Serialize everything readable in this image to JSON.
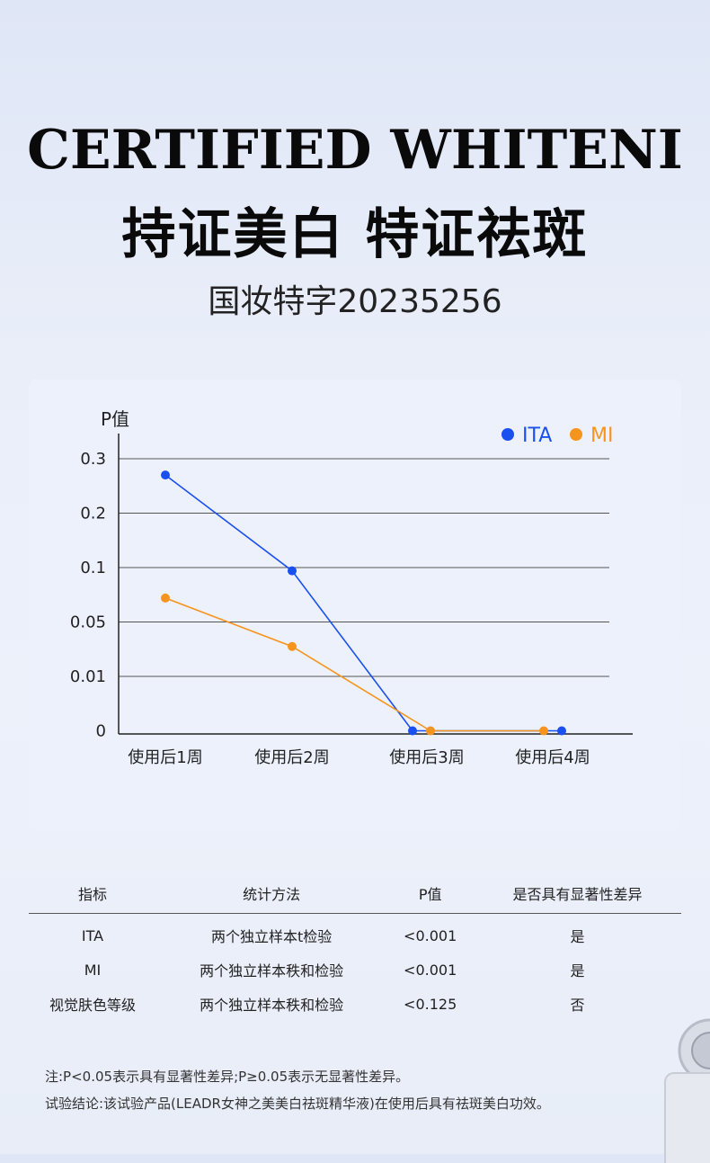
{
  "hero": {
    "title_en": "CERTIFIED WHITENI",
    "title_cn": "持证美白 特证祛斑",
    "license": "国妆特字20235256"
  },
  "chart_data": {
    "type": "line",
    "ylabel": "P值",
    "categories": [
      "使用后1周",
      "使用后2周",
      "使用后3周",
      "使用后4周"
    ],
    "y_ticks": [
      "0.3",
      "0.2",
      "0.1",
      "0.05",
      "0.01",
      "0"
    ],
    "series": [
      {
        "name": "ITA",
        "color": "#1a4ff0",
        "values": [
          0.27,
          0.097,
          0,
          0
        ]
      },
      {
        "name": "MI",
        "color": "#f7941d",
        "values": [
          0.072,
          0.032,
          0,
          0
        ]
      }
    ],
    "legend_position": "top-right",
    "grid": true
  },
  "table": {
    "headers": [
      "指标",
      "统计方法",
      "P值",
      "是否具有显著性差异"
    ],
    "rows": [
      [
        "ITA",
        "两个独立样本t检验",
        "<0.001",
        "是"
      ],
      [
        "MI",
        "两个独立样本秩和检验",
        "<0.001",
        "是"
      ],
      [
        "视觉肤色等级",
        "两个独立样本秩和检验",
        "<0.125",
        "否"
      ]
    ]
  },
  "notes": {
    "note1": "注:P<0.05表示具有显著性差异;P≥0.05表示无显著性差异。",
    "note2": "试验结论:该试验产品(LEADR女神之美美白祛斑精华液)在使用后具有祛斑美白功效。"
  }
}
